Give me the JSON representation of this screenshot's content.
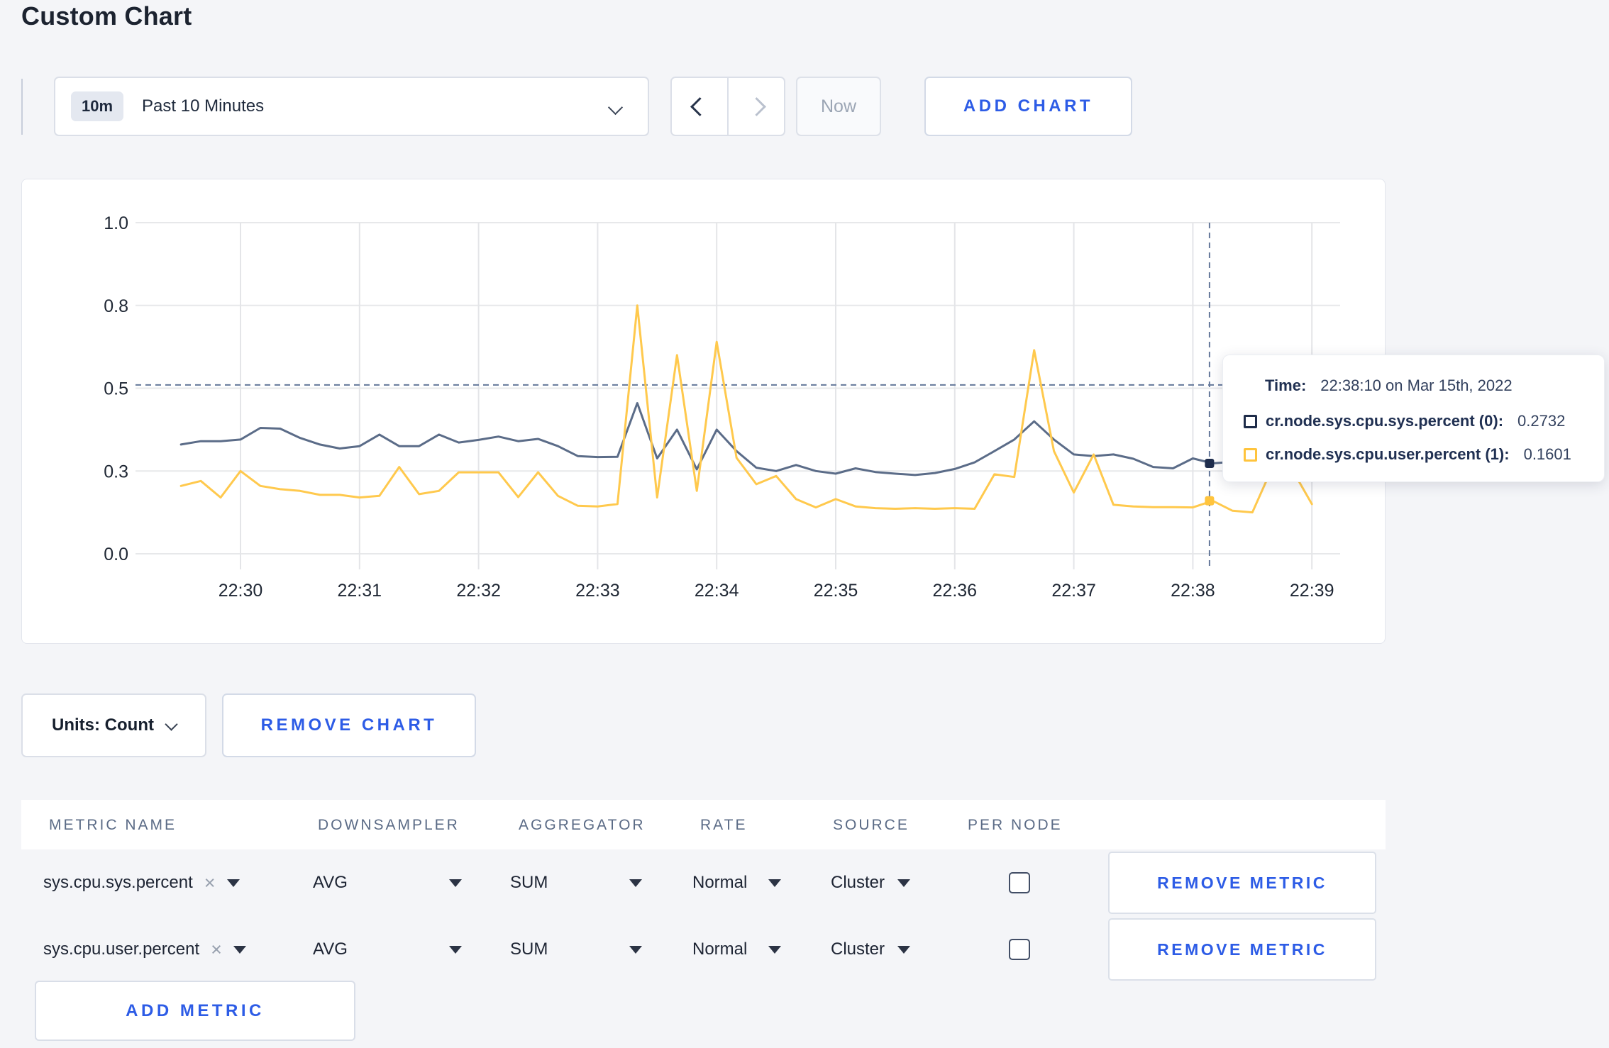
{
  "page": {
    "title": "Custom Chart"
  },
  "toolbar": {
    "range_badge": "10m",
    "range_label": "Past 10 Minutes",
    "now_label": "Now",
    "add_chart_label": "ADD CHART"
  },
  "chart_footer": {
    "units_label": "Units: Count",
    "remove_chart_label": "REMOVE CHART"
  },
  "tooltip": {
    "time_label": "Time:",
    "time_value": "22:38:10 on Mar 15th, 2022",
    "rows": [
      {
        "label": "cr.node.sys.cpu.sys.percent (0):",
        "value": "0.2732",
        "color": "#1e2c49"
      },
      {
        "label": "cr.node.sys.cpu.user.percent (1):",
        "value": "0.1601",
        "color": "#ffc43d"
      }
    ]
  },
  "metrics_table": {
    "columns": [
      "METRIC NAME",
      "DOWNSAMPLER",
      "AGGREGATOR",
      "RATE",
      "SOURCE",
      "PER NODE"
    ],
    "rows": [
      {
        "metric": "sys.cpu.sys.percent",
        "remove_icon": "×",
        "downsampler": "AVG",
        "aggregator": "SUM",
        "rate": "Normal",
        "source": "Cluster",
        "per_node_checked": false,
        "remove_label": "REMOVE METRIC"
      },
      {
        "metric": "sys.cpu.user.percent",
        "remove_icon": "×",
        "downsampler": "AVG",
        "aggregator": "SUM",
        "rate": "Normal",
        "source": "Cluster",
        "per_node_checked": false,
        "remove_label": "REMOVE METRIC"
      }
    ],
    "add_metric_label": "ADD METRIC"
  },
  "chart_data": {
    "type": "line",
    "title": "",
    "xlabel": "",
    "ylabel": "",
    "ylim": [
      0,
      1
    ],
    "grid": true,
    "x_ticks": [
      "22:30",
      "22:31",
      "22:32",
      "22:33",
      "22:34",
      "22:35",
      "22:36",
      "22:37",
      "22:38",
      "22:39"
    ],
    "y_ticks": [
      {
        "label": "0.0",
        "value": 0
      },
      {
        "label": "0.3",
        "value": 0.25
      },
      {
        "label": "0.5",
        "value": 0.5
      },
      {
        "label": "0.8",
        "value": 0.75
      },
      {
        "label": "1.0",
        "value": 1
      }
    ],
    "sample_interval_sec": 10,
    "data_start_offset_min": -0.5,
    "series": [
      {
        "name": "cr.node.sys.cpu.sys.percent",
        "color": "#5b6c88",
        "values": [
          0.33,
          0.34,
          0.34,
          0.345,
          0.38,
          0.378,
          0.35,
          0.33,
          0.318,
          0.325,
          0.36,
          0.325,
          0.325,
          0.36,
          0.336,
          0.344,
          0.354,
          0.34,
          0.347,
          0.325,
          0.295,
          0.292,
          0.293,
          0.455,
          0.288,
          0.375,
          0.255,
          0.375,
          0.31,
          0.26,
          0.25,
          0.268,
          0.25,
          0.242,
          0.258,
          0.247,
          0.242,
          0.238,
          0.244,
          0.256,
          0.276,
          0.31,
          0.345,
          0.4,
          0.345,
          0.3,
          0.295,
          0.3,
          0.287,
          0.262,
          0.258,
          0.288,
          0.273,
          0.278,
          0.262,
          0.26,
          0.266,
          0.26
        ]
      },
      {
        "name": "cr.node.sys.cpu.user.percent",
        "color": "#ffc94d",
        "values": [
          0.205,
          0.22,
          0.17,
          0.25,
          0.205,
          0.195,
          0.19,
          0.178,
          0.178,
          0.17,
          0.175,
          0.262,
          0.18,
          0.19,
          0.246,
          0.246,
          0.246,
          0.171,
          0.246,
          0.175,
          0.145,
          0.143,
          0.15,
          0.75,
          0.17,
          0.6,
          0.19,
          0.64,
          0.29,
          0.21,
          0.235,
          0.165,
          0.14,
          0.165,
          0.143,
          0.138,
          0.136,
          0.138,
          0.136,
          0.138,
          0.136,
          0.24,
          0.232,
          0.615,
          0.31,
          0.185,
          0.3,
          0.148,
          0.143,
          0.141,
          0.141,
          0.14,
          0.16,
          0.13,
          0.125,
          0.26,
          0.255,
          0.15
        ]
      }
    ],
    "crosshair": {
      "time": "22:38:10",
      "minutes_from_first_tick": 8.14,
      "h_line_value": 0.51,
      "dots": [
        {
          "series": 0,
          "value": 0.273,
          "color": "#1f2d4d"
        },
        {
          "series": 1,
          "value": 0.16,
          "color": "#ffc43d"
        }
      ]
    }
  }
}
